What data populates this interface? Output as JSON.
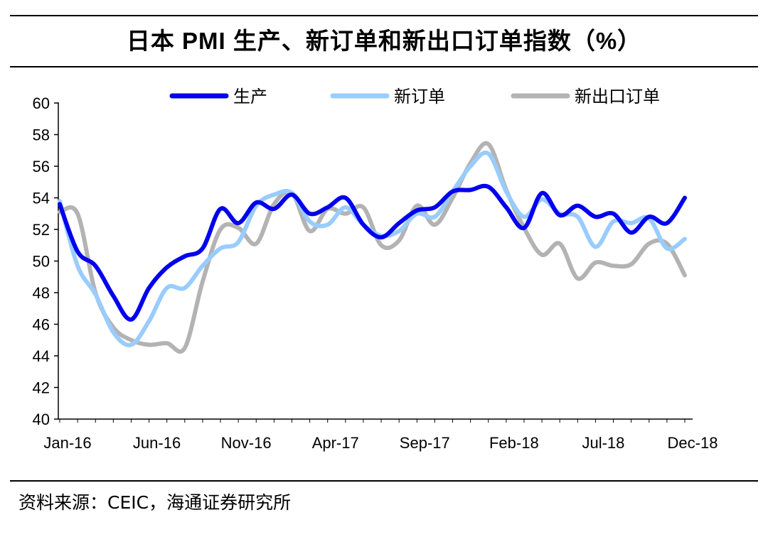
{
  "title": "日本 PMI 生产、新订单和新出口订单指数（%）",
  "source": "资料来源：CEIC，海通证券研究所",
  "chart_data": {
    "type": "line",
    "title": "日本 PMI 生产、新订单和新出口订单指数（%）",
    "xlabel": "",
    "ylabel": "",
    "ylim": [
      40,
      60
    ],
    "yticks": [
      40,
      42,
      44,
      46,
      48,
      50,
      52,
      54,
      56,
      58,
      60
    ],
    "grid": false,
    "legend_position": "top",
    "x": [
      "Jan-16",
      "Feb-16",
      "Mar-16",
      "Apr-16",
      "May-16",
      "Jun-16",
      "Jul-16",
      "Aug-16",
      "Sep-16",
      "Oct-16",
      "Nov-16",
      "Dec-16",
      "Jan-17",
      "Feb-17",
      "Mar-17",
      "Apr-17",
      "May-17",
      "Jun-17",
      "Jul-17",
      "Aug-17",
      "Sep-17",
      "Oct-17",
      "Nov-17",
      "Dec-17",
      "Jan-18",
      "Feb-18",
      "Mar-18",
      "Apr-18",
      "May-18",
      "Jun-18",
      "Jul-18",
      "Aug-18",
      "Sep-18",
      "Oct-18",
      "Nov-18",
      "Dec-18"
    ],
    "tick_labels": [
      "Jan-16",
      "Jun-16",
      "Nov-16",
      "Apr-17",
      "Sep-17",
      "Feb-18",
      "Jul-18",
      "Dec-18"
    ],
    "tick_indices": [
      0,
      5,
      10,
      15,
      20,
      25,
      30,
      35
    ],
    "series": [
      {
        "name": "生产",
        "color": "#0000ee",
        "width": 6,
        "values": [
          53.6,
          50.6,
          49.7,
          47.8,
          46.3,
          48.3,
          49.6,
          50.3,
          50.8,
          53.3,
          52.4,
          53.7,
          53.3,
          54.2,
          53.0,
          53.4,
          54.0,
          52.3,
          51.5,
          52.4,
          53.2,
          53.4,
          54.4,
          54.5,
          54.7,
          53.4,
          52.1,
          54.3,
          52.9,
          53.5,
          52.8,
          53.0,
          51.8,
          52.8,
          52.4,
          54.0
        ]
      },
      {
        "name": "新订单",
        "color": "#99ccff",
        "width": 6,
        "values": [
          53.8,
          49.7,
          47.9,
          45.5,
          44.7,
          46.2,
          48.3,
          48.3,
          49.7,
          50.8,
          51.2,
          53.5,
          54.2,
          54.3,
          52.5,
          52.3,
          53.4,
          52.3,
          51.6,
          51.9,
          53.0,
          52.8,
          54.4,
          56.0,
          56.8,
          54.4,
          52.8,
          53.9,
          53.0,
          52.8,
          50.9,
          52.5,
          52.4,
          52.7,
          50.8,
          51.4
        ]
      },
      {
        "name": "新出口订单",
        "color": "#b3b3b3",
        "width": 6,
        "values": [
          53.1,
          53.0,
          48.0,
          45.8,
          45.0,
          44.7,
          44.8,
          44.5,
          48.7,
          52.0,
          52.1,
          51.1,
          53.6,
          54.3,
          51.9,
          53.3,
          53.0,
          53.4,
          51.0,
          51.3,
          53.5,
          52.3,
          54.0,
          56.2,
          57.4,
          54.5,
          52.1,
          50.4,
          51.1,
          48.9,
          49.9,
          49.7,
          49.8,
          51.1,
          51.1,
          49.1
        ]
      }
    ]
  }
}
